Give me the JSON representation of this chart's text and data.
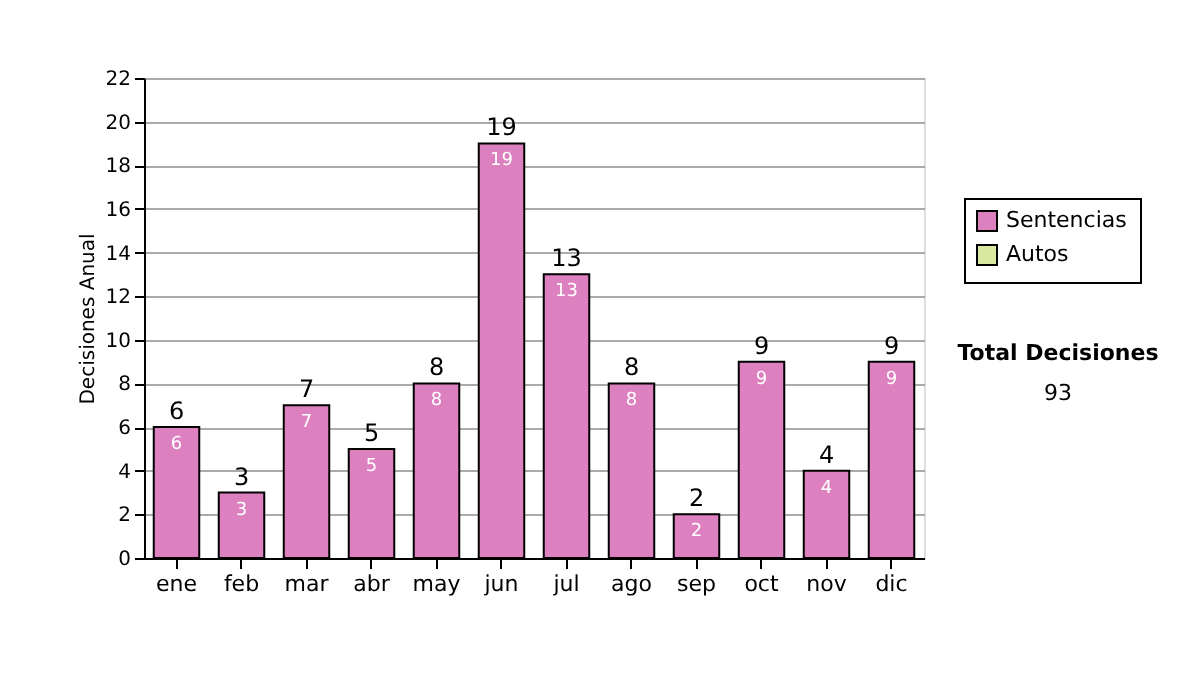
{
  "chart_data": {
    "type": "bar",
    "ylabel": "Decisiones Anual",
    "categories": [
      "ene",
      "feb",
      "mar",
      "abr",
      "may",
      "jun",
      "jul",
      "ago",
      "sep",
      "oct",
      "nov",
      "dic"
    ],
    "series": [
      {
        "name": "Sentencias",
        "color": "#dd80c0",
        "values": [
          6,
          3,
          7,
          5,
          8,
          19,
          13,
          8,
          2,
          9,
          4,
          9
        ]
      },
      {
        "name": "Autos",
        "color": "#d8e8a0",
        "values": [
          null,
          null,
          null,
          null,
          null,
          null,
          null,
          null,
          null,
          null,
          null,
          null
        ]
      }
    ],
    "totals": [
      "6",
      "3",
      "7",
      "5",
      "8",
      "19",
      "13",
      "8",
      "2",
      "9",
      "4",
      "9"
    ],
    "data_labels": true,
    "ylim": [
      0,
      22
    ],
    "yticks": [
      0,
      2,
      4,
      6,
      8,
      10,
      12,
      14,
      16,
      18,
      20,
      22
    ],
    "grid": "y",
    "legend": "right",
    "annotations": [
      "Total Decisiones",
      "93"
    ]
  }
}
